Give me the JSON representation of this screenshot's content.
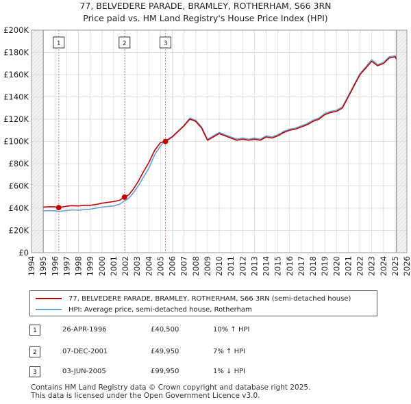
{
  "chart_data": {
    "type": "line",
    "title": "77, BELVEDERE PARADE, BRAMLEY, ROTHERHAM, S66 3RN",
    "subtitle": "Price paid vs. HM Land Registry's House Price Index (HPI)",
    "xlabel": "",
    "ylabel": "",
    "xlim": [
      1994,
      2026
    ],
    "ylim": [
      0,
      200000
    ],
    "y_ticks": [
      {
        "value": 0,
        "label": "£0"
      },
      {
        "value": 20000,
        "label": "£20K"
      },
      {
        "value": 40000,
        "label": "£40K"
      },
      {
        "value": 60000,
        "label": "£60K"
      },
      {
        "value": 80000,
        "label": "£80K"
      },
      {
        "value": 100000,
        "label": "£100K"
      },
      {
        "value": 120000,
        "label": "£120K"
      },
      {
        "value": 140000,
        "label": "£140K"
      },
      {
        "value": 160000,
        "label": "£160K"
      },
      {
        "value": 180000,
        "label": "£180K"
      },
      {
        "value": 200000,
        "label": "£200K"
      }
    ],
    "x_ticks": [
      "1994",
      "1995",
      "1996",
      "1997",
      "1998",
      "1999",
      "2000",
      "2001",
      "2002",
      "2003",
      "2004",
      "2005",
      "2006",
      "2007",
      "2008",
      "2009",
      "2010",
      "2011",
      "2012",
      "2013",
      "2014",
      "2015",
      "2016",
      "2017",
      "2018",
      "2019",
      "2020",
      "2021",
      "2022",
      "2023",
      "2024",
      "2025",
      "2026"
    ],
    "grid": true,
    "data_start_year": 1995,
    "data_end_year": 2025.1,
    "series": [
      {
        "name": "77, BELVEDERE PARADE, BRAMLEY, ROTHERHAM, S66 3RN (semi-detached house)",
        "color": "#c00000",
        "points": [
          [
            1995,
            41000
          ],
          [
            1995.5,
            41300
          ],
          [
            1996,
            41200
          ],
          [
            1996.32,
            40500
          ],
          [
            1997,
            41800
          ],
          [
            1997.5,
            42300
          ],
          [
            1998,
            42000
          ],
          [
            1998.5,
            42600
          ],
          [
            1999,
            42500
          ],
          [
            1999.5,
            43300
          ],
          [
            2000,
            44500
          ],
          [
            2000.5,
            45200
          ],
          [
            2001,
            46000
          ],
          [
            2001.5,
            47000
          ],
          [
            2001.93,
            49950
          ],
          [
            2002.3,
            52000
          ],
          [
            2002.7,
            57500
          ],
          [
            2003.1,
            64000
          ],
          [
            2003.5,
            72000
          ],
          [
            2004,
            81000
          ],
          [
            2004.5,
            92000
          ],
          [
            2005.0,
            99000
          ],
          [
            2005.42,
            99950
          ],
          [
            2006,
            104000
          ],
          [
            2006.5,
            109000
          ],
          [
            2007,
            114000
          ],
          [
            2007.5,
            120000
          ],
          [
            2008,
            118000
          ],
          [
            2008.5,
            112000
          ],
          [
            2009,
            101000
          ],
          [
            2009.5,
            104000
          ],
          [
            2010,
            107000
          ],
          [
            2010.5,
            105000
          ],
          [
            2011,
            103000
          ],
          [
            2011.5,
            101000
          ],
          [
            2012,
            102000
          ],
          [
            2012.5,
            101000
          ],
          [
            2013,
            102000
          ],
          [
            2013.5,
            101000
          ],
          [
            2014,
            104000
          ],
          [
            2014.5,
            103000
          ],
          [
            2015,
            105000
          ],
          [
            2015.5,
            108000
          ],
          [
            2016,
            110000
          ],
          [
            2016.5,
            111000
          ],
          [
            2017,
            113000
          ],
          [
            2017.5,
            115000
          ],
          [
            2018,
            118000
          ],
          [
            2018.5,
            120000
          ],
          [
            2019,
            124000
          ],
          [
            2019.5,
            126000
          ],
          [
            2020,
            127000
          ],
          [
            2020.5,
            130000
          ],
          [
            2021,
            140000
          ],
          [
            2021.5,
            150000
          ],
          [
            2022,
            160000
          ],
          [
            2022.5,
            166000
          ],
          [
            2023,
            172000
          ],
          [
            2023.5,
            168000
          ],
          [
            2024,
            170000
          ],
          [
            2024.5,
            175000
          ],
          [
            2025,
            176000
          ],
          [
            2025.1,
            174000
          ]
        ]
      },
      {
        "name": "HPI: Average price, semi-detached house, Rotherham",
        "color": "#6a9fd4",
        "points": [
          [
            1995,
            37500
          ],
          [
            1995.5,
            37800
          ],
          [
            1996,
            37600
          ],
          [
            1996.32,
            37000
          ],
          [
            1997,
            38000
          ],
          [
            1997.5,
            38400
          ],
          [
            1998,
            38200
          ],
          [
            1998.5,
            38700
          ],
          [
            1999,
            39000
          ],
          [
            1999.5,
            40000
          ],
          [
            2000,
            41000
          ],
          [
            2000.5,
            41500
          ],
          [
            2001,
            42000
          ],
          [
            2001.5,
            43500
          ],
          [
            2001.93,
            46500
          ],
          [
            2002.3,
            49000
          ],
          [
            2002.7,
            54000
          ],
          [
            2003.1,
            60000
          ],
          [
            2003.5,
            67000
          ],
          [
            2004,
            76000
          ],
          [
            2004.5,
            88000
          ],
          [
            2005.0,
            96000
          ],
          [
            2005.42,
            101000
          ],
          [
            2006,
            104500
          ],
          [
            2006.5,
            109500
          ],
          [
            2007,
            114500
          ],
          [
            2007.5,
            121000
          ],
          [
            2008,
            119000
          ],
          [
            2008.5,
            113000
          ],
          [
            2009,
            102000
          ],
          [
            2009.5,
            105000
          ],
          [
            2010,
            108000
          ],
          [
            2010.5,
            106000
          ],
          [
            2011,
            104000
          ],
          [
            2011.5,
            102000
          ],
          [
            2012,
            103000
          ],
          [
            2012.5,
            102000
          ],
          [
            2013,
            103000
          ],
          [
            2013.5,
            102000
          ],
          [
            2014,
            105000
          ],
          [
            2014.5,
            104000
          ],
          [
            2015,
            106000
          ],
          [
            2015.5,
            109000
          ],
          [
            2016,
            111000
          ],
          [
            2016.5,
            112000
          ],
          [
            2017,
            114000
          ],
          [
            2017.5,
            116000
          ],
          [
            2018,
            119000
          ],
          [
            2018.5,
            121000
          ],
          [
            2019,
            125000
          ],
          [
            2019.5,
            127000
          ],
          [
            2020,
            128000
          ],
          [
            2020.5,
            131000
          ],
          [
            2021,
            141000
          ],
          [
            2021.5,
            151000
          ],
          [
            2022,
            161000
          ],
          [
            2022.5,
            167000
          ],
          [
            2023,
            173500
          ],
          [
            2023.5,
            169000
          ],
          [
            2024,
            171000
          ],
          [
            2024.5,
            176000
          ],
          [
            2025,
            177000
          ],
          [
            2025.1,
            175000
          ]
        ]
      }
    ],
    "sales": [
      {
        "num": "1",
        "year": 1996.32,
        "price": 40500
      },
      {
        "num": "2",
        "year": 2001.93,
        "price": 49950
      },
      {
        "num": "3",
        "year": 2005.42,
        "price": 99950
      }
    ],
    "hatch_regions": [
      [
        1994,
        1995
      ],
      [
        2025.1,
        2026
      ]
    ]
  },
  "legend": {
    "property_label": "77, BELVEDERE PARADE, BRAMLEY, ROTHERHAM, S66 3RN (semi-detached house)",
    "hpi_label": "HPI: Average price, semi-detached house, Rotherham"
  },
  "sales_table": [
    {
      "num": "1",
      "date": "26-APR-1996",
      "price": "£40,500",
      "hpi": "10% ↑ HPI"
    },
    {
      "num": "2",
      "date": "07-DEC-2001",
      "price": "£49,950",
      "hpi": "7% ↑ HPI"
    },
    {
      "num": "3",
      "date": "03-JUN-2005",
      "price": "£99,950",
      "hpi": "1% ↓ HPI"
    }
  ],
  "footer": {
    "line1": "Contains HM Land Registry data © Crown copyright and database right 2025.",
    "line2": "This data is licensed under the Open Government Licence v3.0."
  },
  "colors": {
    "property_line": "#c00000",
    "hpi_line": "#6a9fd4",
    "grid": "#dddddd",
    "plot_bg": "#ffffff"
  }
}
